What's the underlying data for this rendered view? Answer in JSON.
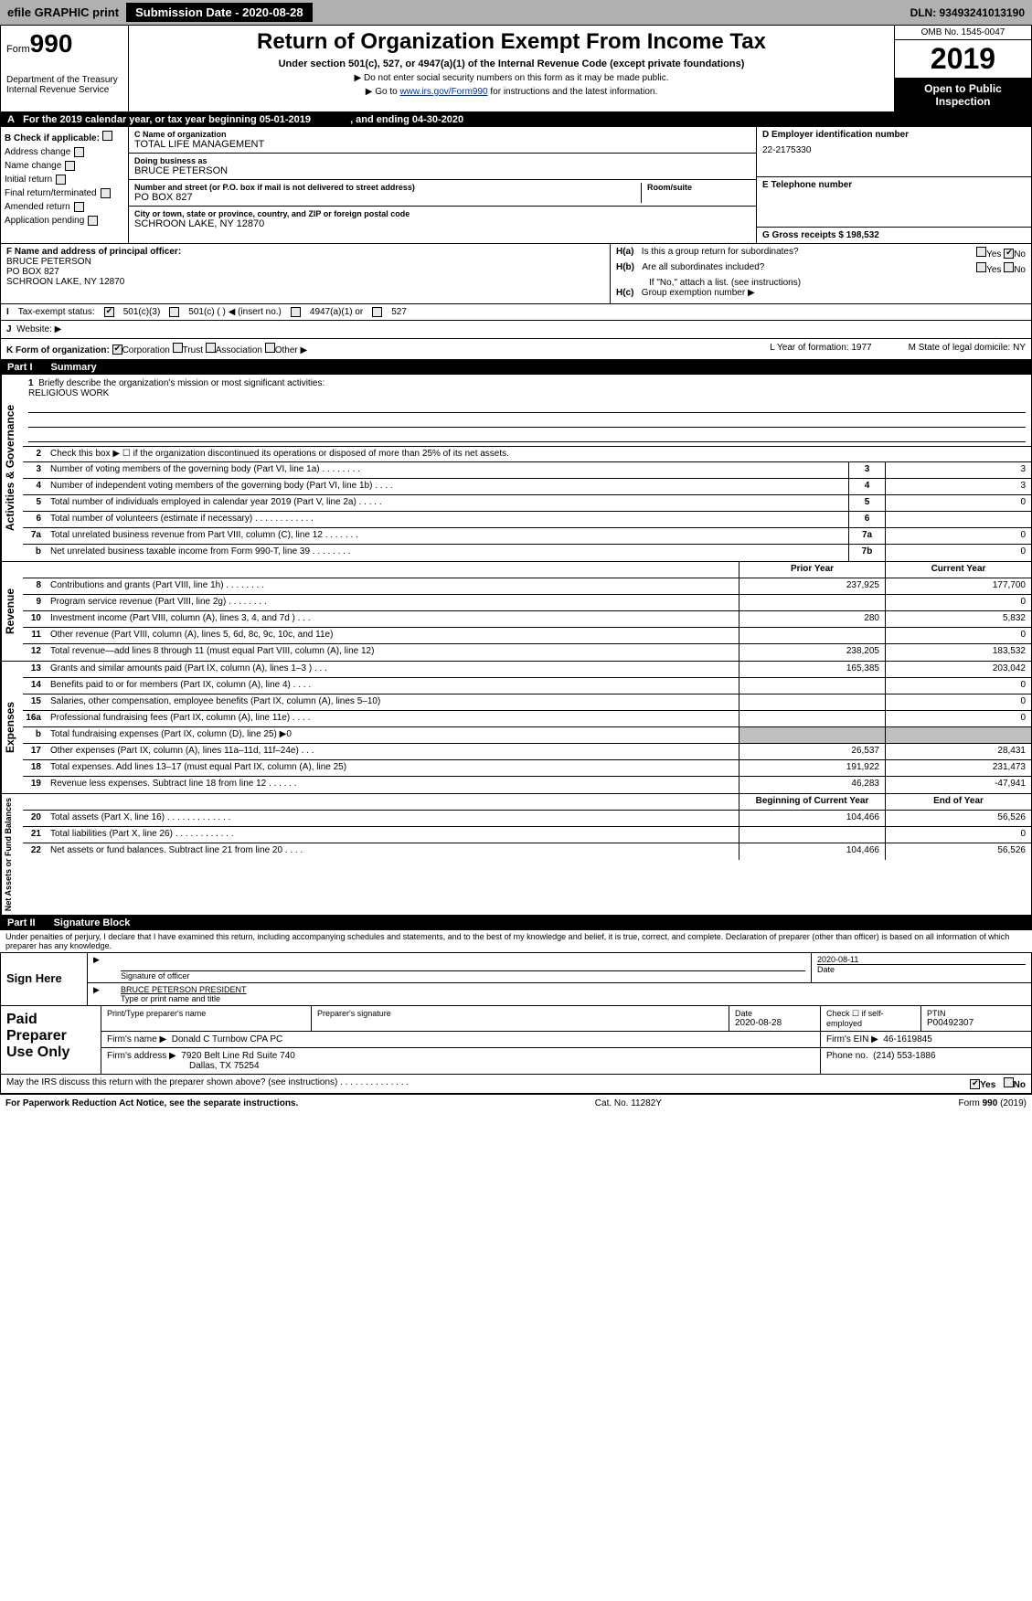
{
  "topbar": {
    "efile": "efile GRAPHIC print",
    "submission": "Submission Date - 2020-08-28",
    "dln": "DLN: 93493241013190"
  },
  "header": {
    "formLabel": "Form",
    "formNum": "990",
    "dept1": "Department of the Treasury",
    "dept2": "Internal Revenue Service",
    "title": "Return of Organization Exempt From Income Tax",
    "sub": "Under section 501(c), 527, or 4947(a)(1) of the Internal Revenue Code (except private foundations)",
    "instr1": "▶ Do not enter social security numbers on this form as it may be made public.",
    "instr2a": "▶ Go to ",
    "instr2link": "www.irs.gov/Form990",
    "instr2b": " for instructions and the latest information.",
    "omb": "OMB No. 1545-0047",
    "year": "2019",
    "insp1": "Open to Public",
    "insp2": "Inspection"
  },
  "calYear": {
    "a": "A",
    "text": "For the 2019 calendar year, or tax year beginning 05-01-2019",
    "end": ", and ending 04-30-2020"
  },
  "sectionB": {
    "header": "B Check if applicable:",
    "items": [
      "Address change",
      "Name change",
      "Initial return",
      "Final return/terminated",
      "Amended return",
      "Application pending"
    ]
  },
  "sectionC": {
    "nameLabel": "C Name of organization",
    "name": "TOTAL LIFE MANAGEMENT",
    "dbaLabel": "Doing business as",
    "dba": "BRUCE PETERSON",
    "addrLabel": "Number and street (or P.O. box if mail is not delivered to street address)",
    "room": "Room/suite",
    "addr": "PO BOX 827",
    "cityLabel": "City or town, state or province, country, and ZIP or foreign postal code",
    "city": "SCHROON LAKE, NY  12870"
  },
  "sectionD": {
    "einLabel": "D Employer identification number",
    "ein": "22-2175330",
    "telLabel": "E Telephone number",
    "grossLabel": "G Gross receipts $ 198,532"
  },
  "sectionF": {
    "label": "F  Name and address of principal officer:",
    "name": "BRUCE PETERSON",
    "addr": "PO BOX 827",
    "city": "SCHROON LAKE, NY  12870"
  },
  "sectionH": {
    "ha": "H(a)",
    "haText": "Is this a group return for subordinates?",
    "hb": "H(b)",
    "hbText": "Are all subordinates included?",
    "hbNote": "If \"No,\" attach a list. (see instructions)",
    "hc": "H(c)",
    "hcText": "Group exemption number ▶",
    "yes": "Yes",
    "no": "No"
  },
  "sectionI": {
    "label": "I",
    "text": "Tax-exempt status:",
    "opt1": "501(c)(3)",
    "opt2": "501(c) (  ) ◀ (insert no.)",
    "opt3": "4947(a)(1) or",
    "opt4": "527"
  },
  "sectionJ": {
    "label": "J",
    "text": "Website: ▶"
  },
  "sectionK": {
    "label": "K Form of organization:",
    "corp": "Corporation",
    "trust": "Trust",
    "assoc": "Association",
    "other": "Other ▶",
    "lLabel": "L Year of formation: 1977",
    "mLabel": "M State of legal domicile: NY"
  },
  "part1": {
    "label": "Part I",
    "title": "Summary"
  },
  "summary": {
    "line1": "Briefly describe the organization's mission or most significant activities:",
    "mission": "RELIGIOUS WORK",
    "line2": "Check this box ▶ ☐ if the organization discontinued its operations or disposed of more than 25% of its net assets.",
    "rows": [
      {
        "n": "3",
        "d": "Number of voting members of the governing body (Part VI, line 1a)   .    .    .    .    .    .    .    .",
        "bl": "3",
        "bv": "3"
      },
      {
        "n": "4",
        "d": "Number of independent voting members of the governing body (Part VI, line 1b)   .    .    .    .",
        "bl": "4",
        "bv": "3"
      },
      {
        "n": "5",
        "d": "Total number of individuals employed in calendar year 2019 (Part V, line 2a)   .    .    .    .    .",
        "bl": "5",
        "bv": "0"
      },
      {
        "n": "6",
        "d": "Total number of volunteers (estimate if necessary)    .    .    .    .    .    .    .    .    .    .    .    .",
        "bl": "6",
        "bv": ""
      },
      {
        "n": "7a",
        "d": "Total unrelated business revenue from Part VIII, column (C), line 12   .    .    .    .    .    .    .",
        "bl": "7a",
        "bv": "0"
      },
      {
        "n": "b",
        "d": "Net unrelated business taxable income from Form 990-T, line 39    .    .    .    .    .    .    .    .",
        "bl": "7b",
        "bv": "0"
      }
    ],
    "priorLabel": "Prior Year",
    "currLabel": "Current Year",
    "revenue": [
      {
        "n": "8",
        "d": "Contributions and grants (Part VIII, line 1h)   .    .    .    .    .    .    .    .",
        "p": "237,925",
        "c": "177,700"
      },
      {
        "n": "9",
        "d": "Program service revenue (Part VIII, line 2g)   .    .    .    .    .    .    .    .",
        "p": "",
        "c": "0"
      },
      {
        "n": "10",
        "d": "Investment income (Part VIII, column (A), lines 3, 4, and 7d )   .    .    .",
        "p": "280",
        "c": "5,832"
      },
      {
        "n": "11",
        "d": "Other revenue (Part VIII, column (A), lines 5, 6d, 8c, 9c, 10c, and 11e)",
        "p": "",
        "c": "0"
      },
      {
        "n": "12",
        "d": "Total revenue—add lines 8 through 11 (must equal Part VIII, column (A), line 12)",
        "p": "238,205",
        "c": "183,532"
      }
    ],
    "expenses": [
      {
        "n": "13",
        "d": "Grants and similar amounts paid (Part IX, column (A), lines 1–3 )   .    .    .",
        "p": "165,385",
        "c": "203,042"
      },
      {
        "n": "14",
        "d": "Benefits paid to or for members (Part IX, column (A), line 4)   .    .    .    .",
        "p": "",
        "c": "0"
      },
      {
        "n": "15",
        "d": "Salaries, other compensation, employee benefits (Part IX, column (A), lines 5–10)",
        "p": "",
        "c": "0"
      },
      {
        "n": "16a",
        "d": "Professional fundraising fees (Part IX, column (A), line 11e)   .    .    .    .",
        "p": "",
        "c": "0"
      },
      {
        "n": "b",
        "d": "Total fundraising expenses (Part IX, column (D), line 25) ▶0",
        "p": "shaded",
        "c": "shaded"
      },
      {
        "n": "17",
        "d": "Other expenses (Part IX, column (A), lines 11a–11d, 11f–24e)   .    .    .",
        "p": "26,537",
        "c": "28,431"
      },
      {
        "n": "18",
        "d": "Total expenses. Add lines 13–17 (must equal Part IX, column (A), line 25)",
        "p": "191,922",
        "c": "231,473"
      },
      {
        "n": "19",
        "d": "Revenue less expenses. Subtract line 18 from line 12  .    .    .    .    .    .",
        "p": "46,283",
        "c": "-47,941"
      }
    ],
    "begLabel": "Beginning of Current Year",
    "endLabel": "End of Year",
    "netassets": [
      {
        "n": "20",
        "d": "Total assets (Part X, line 16)  .    .    .    .    .    .    .    .    .    .    .    .    .",
        "p": "104,466",
        "c": "56,526"
      },
      {
        "n": "21",
        "d": "Total liabilities (Part X, line 26)   .    .    .    .    .    .    .    .    .    .    .    .",
        "p": "",
        "c": "0"
      },
      {
        "n": "22",
        "d": "Net assets or fund balances. Subtract line 21 from line 20    .    .    .    .",
        "p": "104,466",
        "c": "56,526"
      }
    ]
  },
  "sidelabels": {
    "gov": "Activities & Governance",
    "rev": "Revenue",
    "exp": "Expenses",
    "net": "Net Assets or Fund Balances"
  },
  "part2": {
    "label": "Part II",
    "title": "Signature Block"
  },
  "penalty": "Under penalties of perjury, I declare that I have examined this return, including accompanying schedules and statements, and to the best of my knowledge and belief, it is true, correct, and complete. Declaration of preparer (other than officer) is based on all information of which preparer has any knowledge.",
  "sign": {
    "label": "Sign Here",
    "sigLabel": "Signature of officer",
    "date": "2020-08-11",
    "dateLabel": "Date",
    "name": "BRUCE PETERSON PRESIDENT",
    "nameLabel": "Type or print name and title"
  },
  "prep": {
    "label": "Paid Preparer Use Only",
    "nameLabel": "Print/Type preparer's name",
    "sigLabel": "Preparer's signature",
    "dateLabel": "Date",
    "date": "2020-08-28",
    "checkLabel": "Check ☐ if self-employed",
    "ptinLabel": "PTIN",
    "ptin": "P00492307",
    "firmLabel": "Firm's name    ▶",
    "firm": "Donald C Turnbow CPA PC",
    "einLabel": "Firm's EIN ▶",
    "ein": "46-1619845",
    "addrLabel": "Firm's address ▶",
    "addr1": "7920 Belt Line Rd Suite 740",
    "addr2": "Dallas, TX  75254",
    "phoneLabel": "Phone no.",
    "phone": "(214) 553-1886"
  },
  "discuss": {
    "text": "May the IRS discuss this return with the preparer shown above? (see instructions)   .    .    .    .    .    .    .    .    .    .    .    .    .    .",
    "yes": "Yes",
    "no": "No"
  },
  "footer": {
    "left": "For Paperwork Reduction Act Notice, see the separate instructions.",
    "center": "Cat. No. 11282Y",
    "right": "Form 990 (2019)"
  }
}
